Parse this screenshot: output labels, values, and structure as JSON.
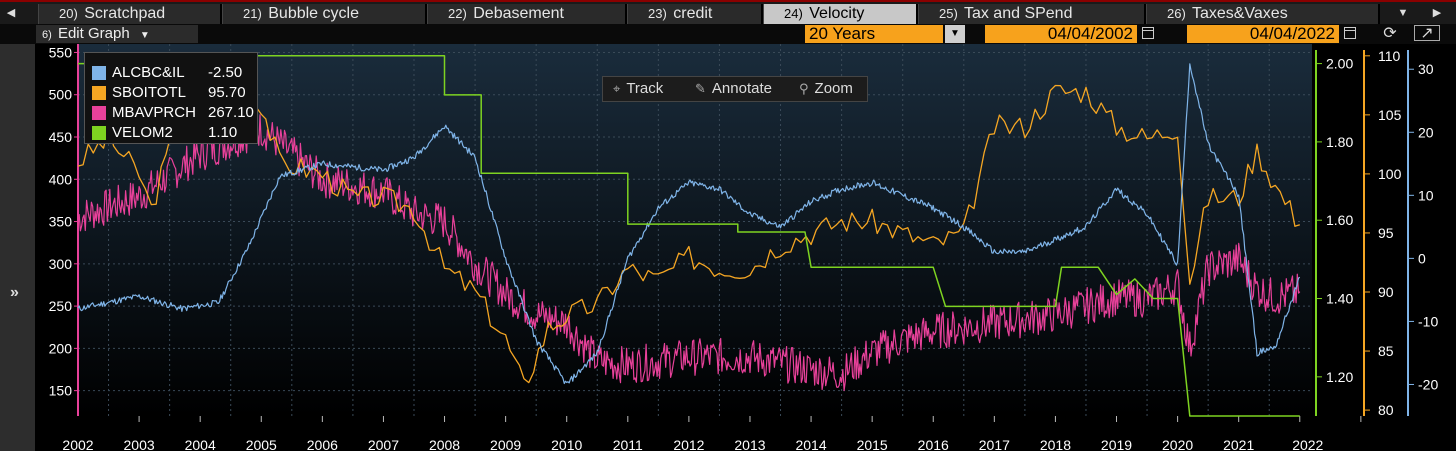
{
  "tabs": [
    {
      "num": "20)",
      "label": "Scratchpad",
      "active": false
    },
    {
      "num": "21)",
      "label": "Bubble cycle",
      "active": false
    },
    {
      "num": "22)",
      "label": "Debasement",
      "active": false
    },
    {
      "num": "23)",
      "label": "credit",
      "active": false
    },
    {
      "num": "24)",
      "label": "Velocity",
      "active": true
    },
    {
      "num": "25)",
      "label": "Tax and SPend",
      "active": false
    },
    {
      "num": "26)",
      "label": "Taxes&Vaxes",
      "active": false
    }
  ],
  "toolbar": {
    "edit_num": "6)",
    "edit_label": "Edit Graph",
    "period": "20 Years",
    "start_date": "04/04/2002",
    "end_date": "04/04/2022"
  },
  "chart_tools": {
    "track": "Track",
    "annotate": "Annotate",
    "zoom": "Zoom"
  },
  "colors": {
    "ALCBC&IL": "#7fb4e8",
    "SBOITOTL": "#f5a623",
    "MBAVPRCH": "#e8419a",
    "VELOM2": "#7ed321"
  },
  "chart_data": {
    "type": "line",
    "x_labels": [
      "2002",
      "2003",
      "2004",
      "2005",
      "2006",
      "2007",
      "2008",
      "2009",
      "2010",
      "2011",
      "2012",
      "2013",
      "2014",
      "2015",
      "2016",
      "2017",
      "2018",
      "2019",
      "2020",
      "2021",
      "2022"
    ],
    "left_axis": {
      "ticks": [
        150,
        200,
        250,
        300,
        350,
        400,
        450,
        500,
        550
      ],
      "ylim": [
        120,
        560
      ]
    },
    "velo_axis": {
      "ticks": [
        1.2,
        1.4,
        1.6,
        1.8,
        2.0
      ],
      "ylim": [
        1.1,
        2.05
      ]
    },
    "sboi_axis": {
      "ticks": [
        80,
        85,
        90,
        95,
        100,
        105,
        110
      ],
      "ylim": [
        79.5,
        111
      ]
    },
    "alcbc_axis": {
      "ticks": [
        -20,
        -10,
        0,
        10,
        20,
        30
      ],
      "ylim": [
        -25,
        34
      ]
    },
    "series": [
      {
        "name": "ALCBC&IL",
        "last": "-2.50",
        "axis": "alcbc",
        "points": [
          [
            2002.0,
            -8
          ],
          [
            2003.0,
            -6
          ],
          [
            2003.7,
            -8
          ],
          [
            2004.3,
            -7
          ],
          [
            2004.8,
            2
          ],
          [
            2005.3,
            13
          ],
          [
            2006.0,
            15
          ],
          [
            2007.0,
            14
          ],
          [
            2007.5,
            16
          ],
          [
            2008.0,
            21
          ],
          [
            2008.5,
            16
          ],
          [
            2009.0,
            0
          ],
          [
            2009.5,
            -13
          ],
          [
            2010.0,
            -20
          ],
          [
            2010.5,
            -15
          ],
          [
            2011.0,
            0
          ],
          [
            2011.5,
            8
          ],
          [
            2012.0,
            12
          ],
          [
            2012.5,
            11
          ],
          [
            2013.0,
            7
          ],
          [
            2013.5,
            5
          ],
          [
            2014.0,
            9
          ],
          [
            2014.5,
            11
          ],
          [
            2015.0,
            12
          ],
          [
            2015.5,
            10
          ],
          [
            2016.0,
            8
          ],
          [
            2016.5,
            5
          ],
          [
            2017.0,
            1
          ],
          [
            2017.5,
            1
          ],
          [
            2018.0,
            3
          ],
          [
            2018.5,
            5
          ],
          [
            2019.0,
            11
          ],
          [
            2019.5,
            7
          ],
          [
            2020.0,
            -1
          ],
          [
            2020.2,
            31
          ],
          [
            2020.5,
            18
          ],
          [
            2021.0,
            10
          ],
          [
            2021.3,
            -15
          ],
          [
            2021.6,
            -14
          ],
          [
            2022.0,
            -3
          ]
        ]
      },
      {
        "name": "SBOITOTL",
        "last": "95.70",
        "axis": "sboi",
        "points": [
          [
            2002.0,
            101
          ],
          [
            2002.5,
            103
          ],
          [
            2003.0,
            100
          ],
          [
            2003.2,
            97
          ],
          [
            2003.6,
            104
          ],
          [
            2004.0,
            106
          ],
          [
            2004.3,
            104
          ],
          [
            2004.6,
            106
          ],
          [
            2005.0,
            106
          ],
          [
            2005.3,
            101
          ],
          [
            2006.0,
            100
          ],
          [
            2006.5,
            98
          ],
          [
            2007.0,
            98
          ],
          [
            2007.5,
            97
          ],
          [
            2008.0,
            92
          ],
          [
            2008.5,
            90
          ],
          [
            2009.0,
            86
          ],
          [
            2009.3,
            82
          ],
          [
            2009.7,
            87
          ],
          [
            2010.0,
            88
          ],
          [
            2010.5,
            89
          ],
          [
            2011.0,
            92
          ],
          [
            2011.5,
            91
          ],
          [
            2012.0,
            93
          ],
          [
            2012.5,
            92
          ],
          [
            2013.0,
            92
          ],
          [
            2013.5,
            94
          ],
          [
            2014.0,
            95
          ],
          [
            2014.5,
            96
          ],
          [
            2015.0,
            96
          ],
          [
            2015.5,
            95
          ],
          [
            2016.0,
            94
          ],
          [
            2016.5,
            95
          ],
          [
            2017.0,
            104
          ],
          [
            2017.5,
            104
          ],
          [
            2018.0,
            107
          ],
          [
            2018.5,
            107
          ],
          [
            2019.0,
            104
          ],
          [
            2019.5,
            103
          ],
          [
            2020.0,
            104
          ],
          [
            2020.2,
            91
          ],
          [
            2020.5,
            98
          ],
          [
            2021.0,
            98
          ],
          [
            2021.3,
            102
          ],
          [
            2021.6,
            99
          ],
          [
            2022.0,
            95.7
          ]
        ]
      },
      {
        "name": "MBAVPRCH",
        "last": "267.10",
        "axis": "left",
        "points": [
          [
            2002.0,
            355
          ],
          [
            2003.0,
            380
          ],
          [
            2004.0,
            430
          ],
          [
            2005.0,
            460
          ],
          [
            2006.0,
            400
          ],
          [
            2007.0,
            385
          ],
          [
            2007.5,
            360
          ],
          [
            2008.0,
            350
          ],
          [
            2008.5,
            300
          ],
          [
            2009.0,
            265
          ],
          [
            2009.5,
            240
          ],
          [
            2010.0,
            230
          ],
          [
            2010.5,
            185
          ],
          [
            2011.0,
            180
          ],
          [
            2012.0,
            190
          ],
          [
            2013.0,
            190
          ],
          [
            2014.0,
            175
          ],
          [
            2014.5,
            170
          ],
          [
            2015.0,
            195
          ],
          [
            2015.5,
            210
          ],
          [
            2016.0,
            220
          ],
          [
            2017.0,
            230
          ],
          [
            2018.0,
            240
          ],
          [
            2019.0,
            260
          ],
          [
            2019.5,
            258
          ],
          [
            2020.0,
            275
          ],
          [
            2020.2,
            200
          ],
          [
            2020.5,
            295
          ],
          [
            2021.0,
            305
          ],
          [
            2021.3,
            270
          ],
          [
            2021.6,
            260
          ],
          [
            2022.0,
            267.1
          ]
        ]
      },
      {
        "name": "VELOM2",
        "last": "1.10",
        "axis": "velo",
        "points": [
          [
            2002.0,
            2.0
          ],
          [
            2004.3,
            2.0
          ],
          [
            2004.4,
            2.02
          ],
          [
            2008.0,
            2.02
          ],
          [
            2008.0,
            1.92
          ],
          [
            2008.6,
            1.92
          ],
          [
            2008.6,
            1.72
          ],
          [
            2011.0,
            1.72
          ],
          [
            2011.0,
            1.59
          ],
          [
            2012.8,
            1.59
          ],
          [
            2012.8,
            1.57
          ],
          [
            2013.9,
            1.57
          ],
          [
            2014.0,
            1.48
          ],
          [
            2016.0,
            1.48
          ],
          [
            2016.2,
            1.38
          ],
          [
            2018.0,
            1.38
          ],
          [
            2018.1,
            1.48
          ],
          [
            2018.7,
            1.48
          ],
          [
            2019.0,
            1.41
          ],
          [
            2019.3,
            1.45
          ],
          [
            2019.6,
            1.4
          ],
          [
            2020.0,
            1.4
          ],
          [
            2020.2,
            1.1
          ],
          [
            2022.0,
            1.1
          ]
        ]
      }
    ]
  }
}
